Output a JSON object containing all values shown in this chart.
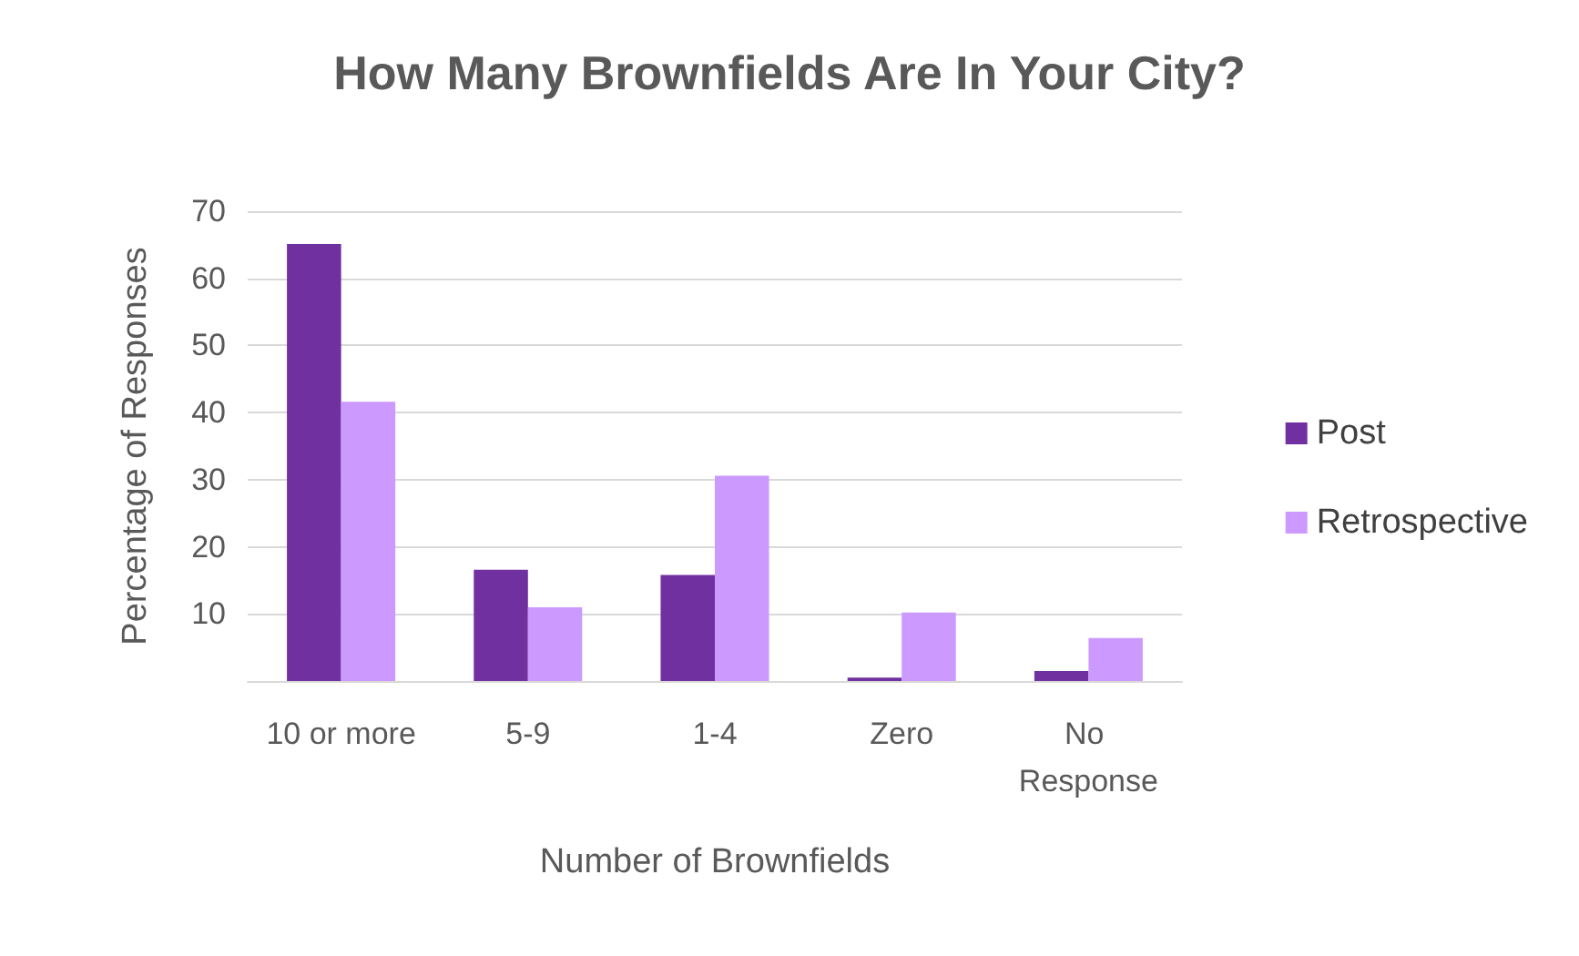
{
  "chart_data": {
    "type": "bar",
    "title": "How Many Brownfields Are In Your City?",
    "xlabel": "Number of Brownfields",
    "ylabel": "Percentage of Responses",
    "categories": [
      "10 or more",
      "5-9",
      "1-4",
      "Zero",
      "No Response"
    ],
    "series": [
      {
        "name": "Post",
        "color": "#7030a0",
        "values": [
          65.1,
          16.6,
          15.8,
          0.5,
          1.5
        ]
      },
      {
        "name": "Retrospective",
        "color": "#cc99ff",
        "values": [
          41.6,
          11.0,
          30.6,
          10.2,
          6.4
        ]
      }
    ],
    "ylim": [
      0,
      70
    ],
    "yticks": [
      {
        "value": 0,
        "label": null
      },
      10,
      20,
      30,
      40,
      50,
      60,
      70
    ],
    "grid": "y",
    "legend": "right"
  }
}
